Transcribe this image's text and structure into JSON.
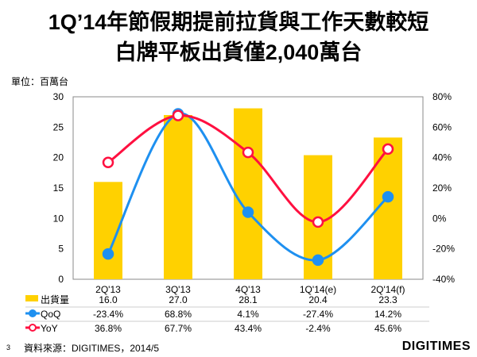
{
  "title_line1": "1Q’14年節假期提前拉貨與工作天數較短",
  "title_line2": "白牌平板出貨僅2,040萬台",
  "unit": "單位：百萬台",
  "source": "資料來源：DIGITIMES，2014/5",
  "page_number": "3",
  "logo": "DIGITIMES",
  "chart_data": {
    "type": "bar+line",
    "categories": [
      "2Q'13",
      "3Q'13",
      "4Q'13",
      "1Q'14(e)",
      "2Q'14(f)"
    ],
    "left_axis": {
      "min": 0,
      "max": 30,
      "ticks": [
        0,
        5,
        10,
        15,
        20,
        25,
        30
      ]
    },
    "right_axis": {
      "min": -40,
      "max": 80,
      "ticks": [
        "-40%",
        "-20%",
        "0%",
        "20%",
        "40%",
        "60%",
        "80%"
      ]
    },
    "series": [
      {
        "name": "出貨量",
        "type": "bar",
        "axis": "left",
        "color": "#FFD100",
        "values": [
          16.0,
          27.0,
          28.1,
          20.4,
          23.3
        ],
        "labels": [
          "16.0",
          "27.0",
          "28.1",
          "20.4",
          "23.3"
        ]
      },
      {
        "name": "QoQ",
        "type": "line",
        "axis": "right",
        "color": "#1E90F0",
        "values": [
          -23.4,
          68.8,
          4.1,
          -27.4,
          14.2
        ],
        "labels": [
          "-23.4%",
          "68.8%",
          "4.1%",
          "-27.4%",
          "14.2%"
        ]
      },
      {
        "name": "YoY",
        "type": "line",
        "axis": "right",
        "color": "#FF1040",
        "values": [
          36.8,
          67.7,
          43.4,
          -2.4,
          45.6
        ],
        "labels": [
          "36.8%",
          "67.7%",
          "43.4%",
          "-2.4%",
          "45.6%"
        ]
      }
    ]
  }
}
